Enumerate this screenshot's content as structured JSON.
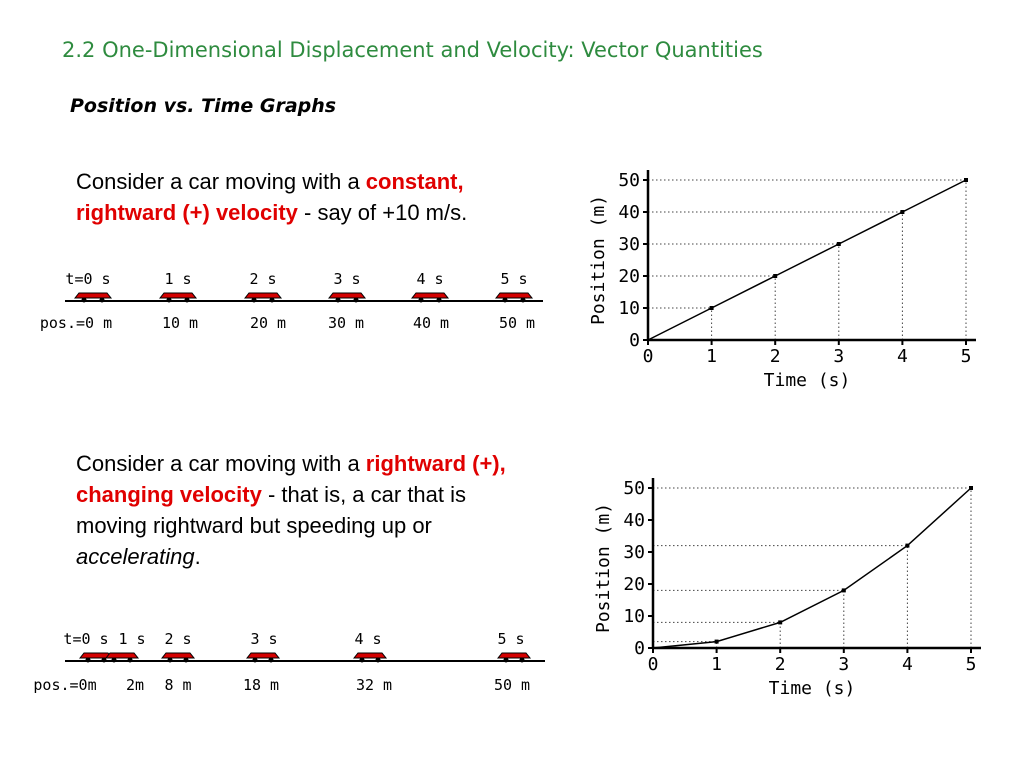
{
  "slide": {
    "title": "2.2 One-Dimensional Displacement and Velocity: Vector Quantities",
    "subtitle": "Position vs. Time Graphs"
  },
  "section1": {
    "text_a": "Consider a car moving with a ",
    "red": "constant, rightward (+) velocity",
    "text_b": " - say of +10 m/s."
  },
  "section2": {
    "text_a": "Consider a car moving with a ",
    "red": "rightward (+), changing velocity",
    "text_b": " - that is, a car that is moving rightward but speeding up or ",
    "italic": "accelerating",
    "text_c": "."
  },
  "strip1": {
    "time_labels": [
      "t=0 s",
      "1 s",
      "2 s",
      "3 s",
      "4 s",
      "5 s"
    ],
    "pos_labels": [
      "pos.=0 m",
      "10 m",
      "20 m",
      "30 m",
      "40 m",
      "50 m"
    ]
  },
  "strip2": {
    "time_labels": [
      "t=0 s",
      "1 s",
      "2 s",
      "3 s",
      "4 s",
      "5 s"
    ],
    "pos_labels": [
      "pos.=0m",
      "2m",
      "8 m",
      "18 m",
      "32 m",
      "50 m"
    ]
  },
  "colors": {
    "title": "#2e8b3f",
    "highlight": "#e00000",
    "car_body": "#d40000"
  },
  "chart_data": [
    {
      "type": "line",
      "x": [
        0,
        1,
        2,
        3,
        4,
        5
      ],
      "y": [
        0,
        10,
        20,
        30,
        40,
        50
      ],
      "xlabel": "Time (s)",
      "ylabel": "Position (m)",
      "xlim": [
        0,
        5
      ],
      "ylim": [
        0,
        50
      ],
      "xticks": [
        "0",
        "1",
        "2",
        "3",
        "4",
        "5"
      ],
      "yticks": [
        "0",
        "10",
        "20",
        "30",
        "40",
        "50"
      ],
      "grid": "dotted guide lines to points"
    },
    {
      "type": "line",
      "x": [
        0,
        1,
        2,
        3,
        4,
        5
      ],
      "y": [
        0,
        2,
        8,
        18,
        32,
        50
      ],
      "xlabel": "Time (s)",
      "ylabel": "Position (m)",
      "xlim": [
        0,
        5
      ],
      "ylim": [
        0,
        50
      ],
      "xticks": [
        "0",
        "1",
        "2",
        "3",
        "4",
        "5"
      ],
      "yticks": [
        "0",
        "10",
        "20",
        "30",
        "40",
        "50"
      ],
      "grid": "dotted guide lines to points"
    }
  ]
}
